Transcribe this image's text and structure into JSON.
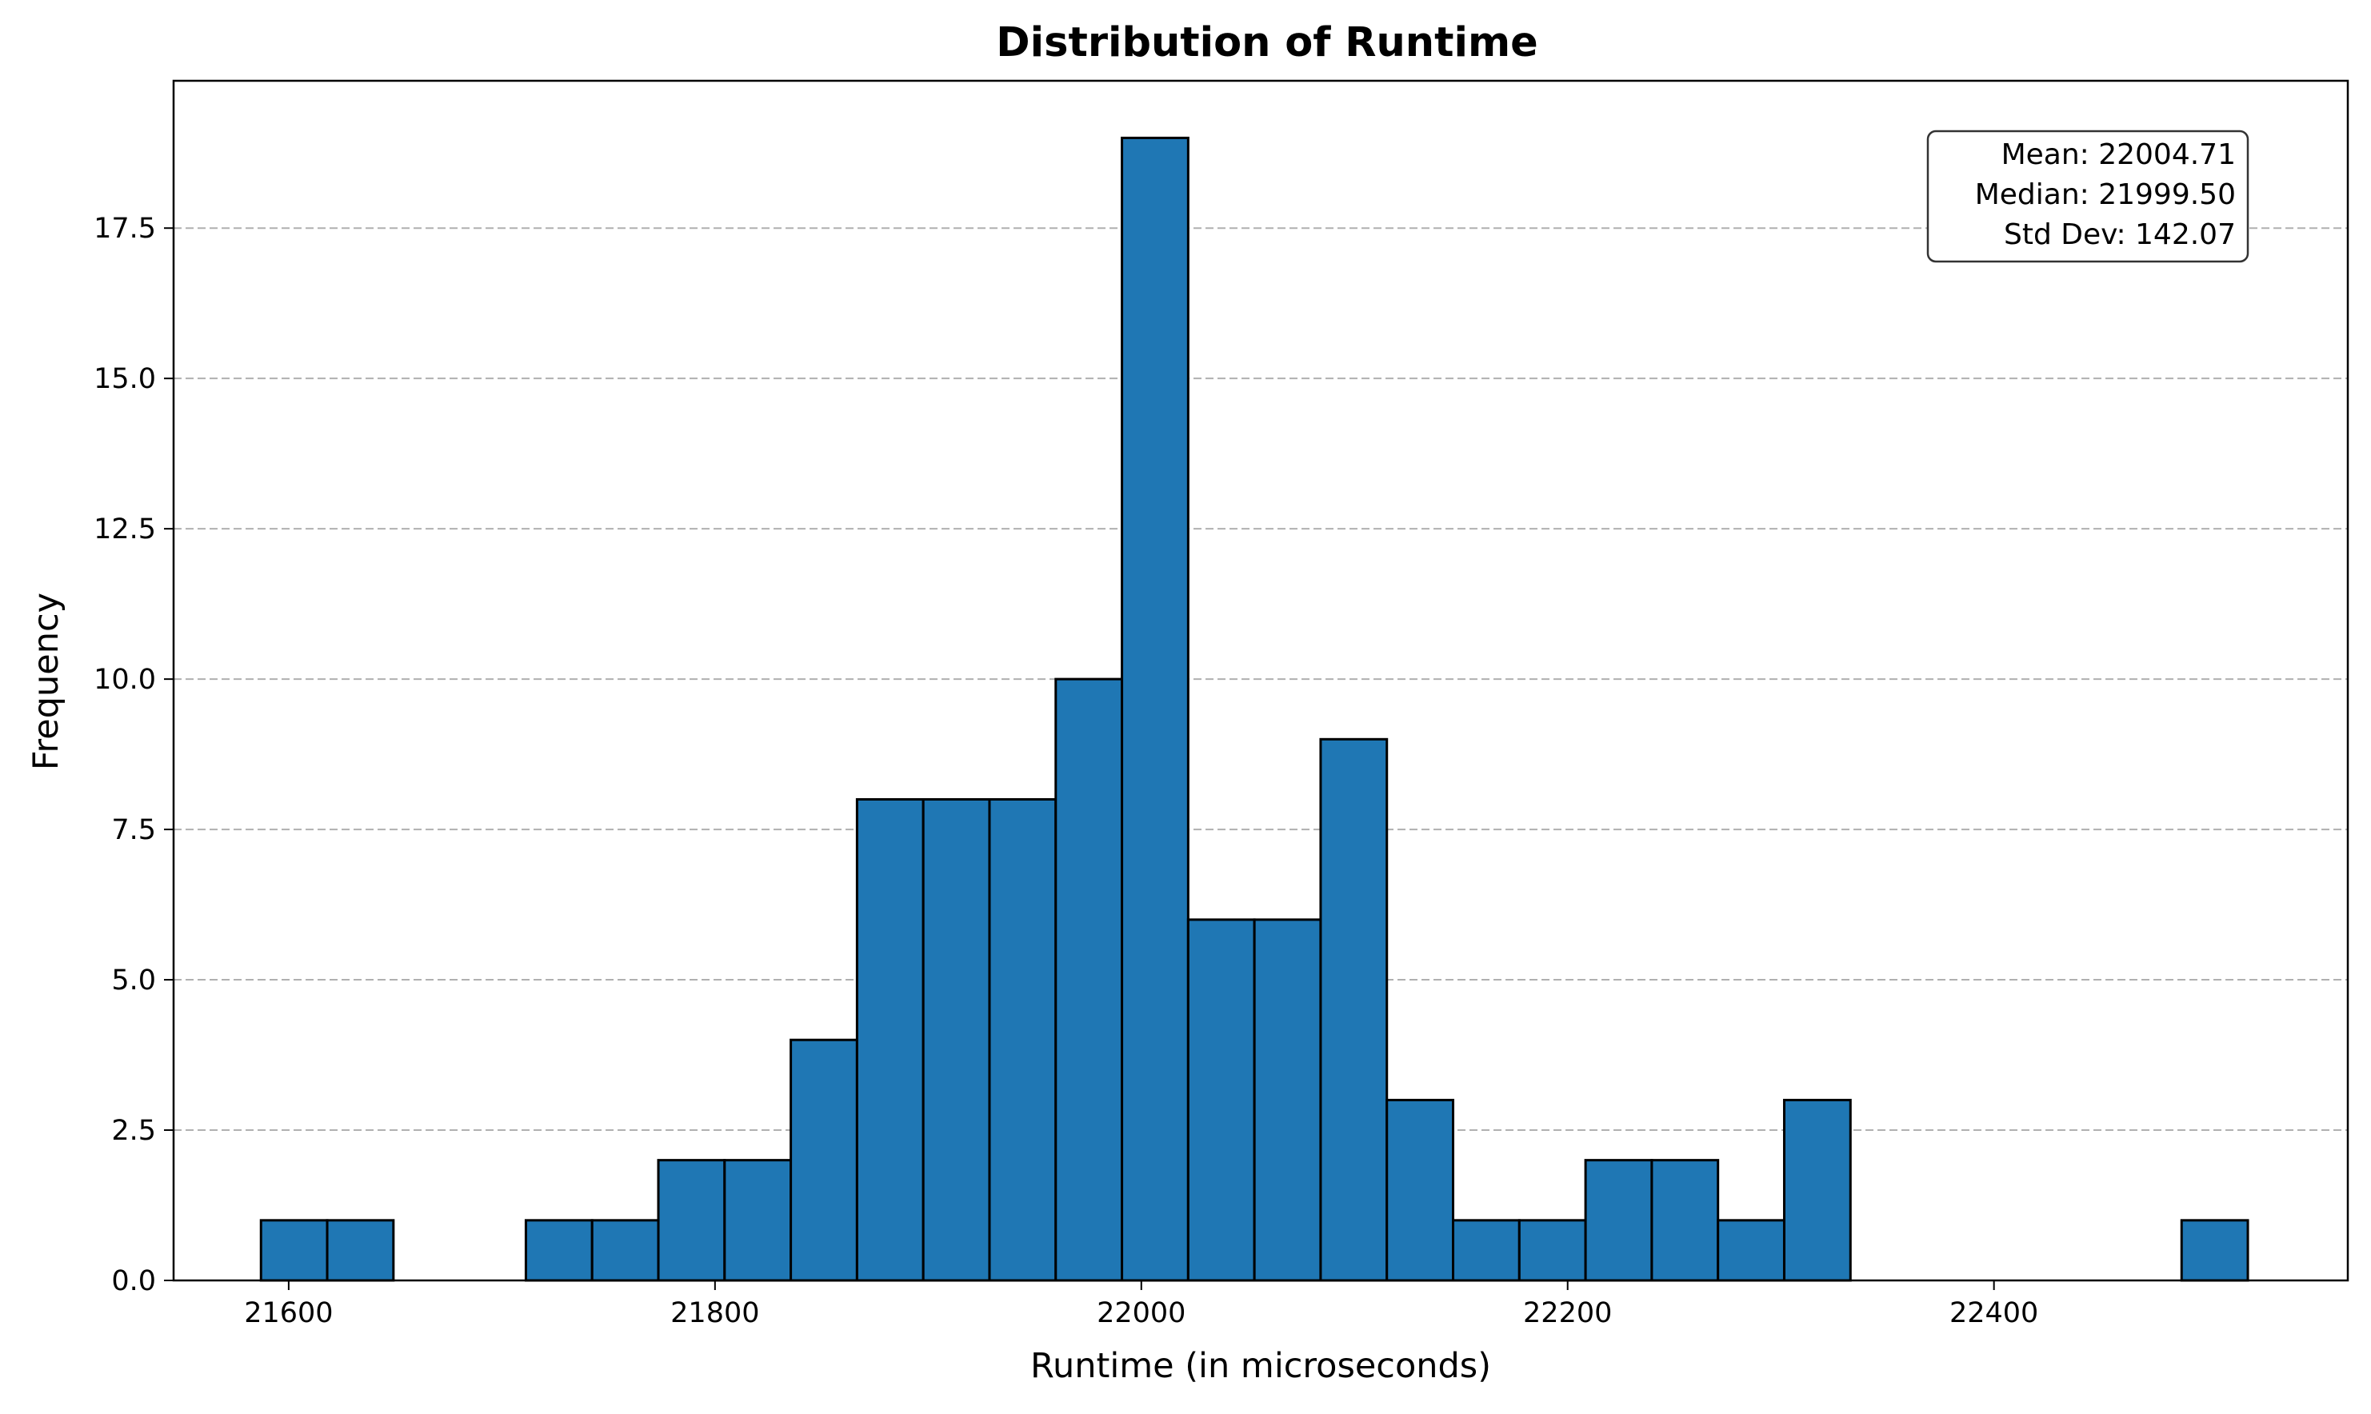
{
  "chart_data": {
    "type": "bar",
    "subtype": "histogram",
    "title": "Distribution of Runtime",
    "xlabel": "Runtime (in microseconds)",
    "ylabel": "Frequency",
    "xlim": [
      21546,
      22566
    ],
    "ylim": [
      0,
      19.95
    ],
    "xticks": [
      21600,
      21800,
      22000,
      22200,
      22400
    ],
    "xtick_labels": [
      "21600",
      "21800",
      "22000",
      "22200",
      "22400"
    ],
    "yticks": [
      0,
      2.5,
      5,
      7.5,
      10,
      12.5,
      15,
      17.5
    ],
    "ytick_labels": [
      "0.0",
      "2.5",
      "5.0",
      "7.5",
      "10.0",
      "12.5",
      "15.0",
      "17.5"
    ],
    "grid": "horizontal dashed",
    "bin_start": 21587,
    "bin_width": 31.07,
    "values": [
      1,
      1,
      0,
      0,
      1,
      1,
      2,
      2,
      4,
      8,
      8,
      8,
      10,
      19,
      6,
      6,
      9,
      3,
      1,
      1,
      2,
      2,
      1,
      3,
      0,
      0,
      0,
      0,
      0,
      1
    ],
    "bar_color": "#1f77b4",
    "edge_color": "#000000",
    "stats": {
      "mean": "Mean: 22004.71",
      "median": "Median: 21999.50",
      "std": "Std Dev: 142.07"
    }
  }
}
